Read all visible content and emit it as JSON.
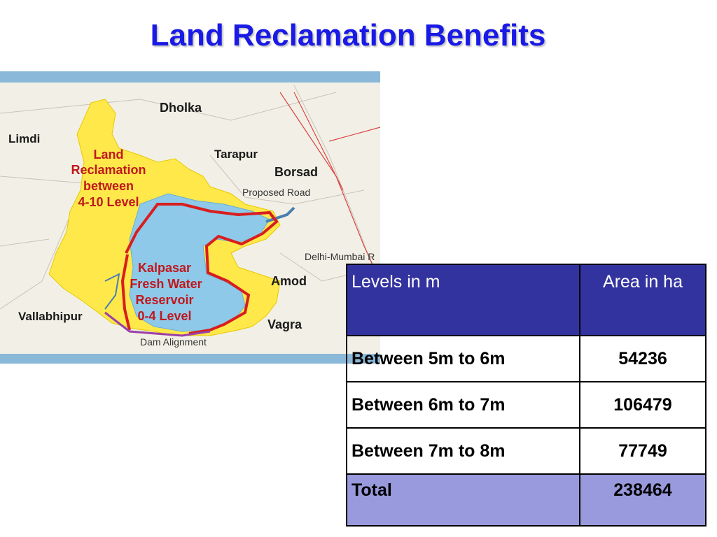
{
  "slide": {
    "title": "Land Reclamation Benefits"
  },
  "map": {
    "labels": {
      "dholka": "Dholka",
      "limdi": "Limdi",
      "tarapur": "Tarapur",
      "borsad": "Borsad",
      "proposed_road": "Proposed Road",
      "land_reclamation_1": "Land",
      "land_reclamation_2": "Reclamation",
      "land_reclamation_3": "between",
      "land_reclamation_4": "4-10 Level",
      "kalpasar_1": "Kalpasar",
      "kalpasar_2": "Fresh Water",
      "kalpasar_3": "Reservoir",
      "kalpasar_4": "0-4 Level",
      "delhi_mumbai": "Delhi-Mumbai R",
      "amod": "Amod",
      "vallabhipur": "Vallabhipur",
      "vagra": "Vagra",
      "dam_alignment": "Dam Alignment"
    },
    "colors": {
      "land": "#f2f0e6",
      "reclamation": "#ffe84a",
      "reservoir": "#8ec9ea",
      "boundary": "#d81e1e",
      "dam": "#9b3fa8",
      "frame": "#8ab8d8"
    }
  },
  "table": {
    "headers": [
      "Levels in m",
      "Area in ha"
    ],
    "rows": [
      [
        "Between 5m to 6m",
        "54236"
      ],
      [
        "Between 6m to 7m",
        "106479"
      ],
      [
        "Between 7m to 8m",
        "77749"
      ]
    ],
    "total": [
      "Total",
      "238464"
    ],
    "colors": {
      "header_bg": "#3333a0",
      "total_bg": "#9999dd"
    }
  }
}
